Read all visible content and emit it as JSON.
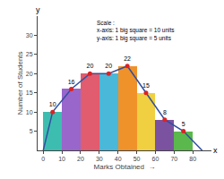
{
  "chart_data": {
    "type": "histogram",
    "xlabel": "Marks Obtained  →",
    "ylabel": "Number of Students",
    "bins": [
      0,
      10,
      20,
      30,
      40,
      50,
      60,
      70,
      80
    ],
    "values": [
      10,
      16,
      20,
      20,
      22,
      15,
      8,
      5
    ],
    "colors": [
      "#3dbdb0",
      "#9966cc",
      "#e05c6e",
      "#4ab8d8",
      "#f0922a",
      "#f0d040",
      "#7b52a0",
      "#5ab84c"
    ],
    "series": [
      {
        "type": "line",
        "color": "#3050a0",
        "x": [
          0,
          5,
          15,
          25,
          35,
          45,
          55,
          65,
          75,
          85
        ],
        "values": [
          0,
          10,
          16,
          20,
          20,
          22,
          15,
          8,
          5,
          0
        ]
      },
      {
        "type": "scatter",
        "marker": "circle",
        "color": "#dd2222",
        "x": [
          5,
          15,
          25,
          35,
          45,
          55,
          65,
          75
        ],
        "values": [
          10,
          16,
          20,
          20,
          22,
          15,
          8,
          5
        ],
        "data_labels": true
      }
    ],
    "annotations": [
      "y",
      "x",
      "Scale :\nx-axis: 1 big square = 10 units\ny-axis: 1 big square = 5 units"
    ],
    "xlim": [
      -3,
      90
    ],
    "xticks": [
      0,
      10,
      20,
      30,
      40,
      50,
      60,
      70,
      80
    ],
    "ylim": [
      0,
      35
    ],
    "yticks": [
      5,
      10,
      15,
      20,
      25,
      30
    ],
    "grid": false
  }
}
